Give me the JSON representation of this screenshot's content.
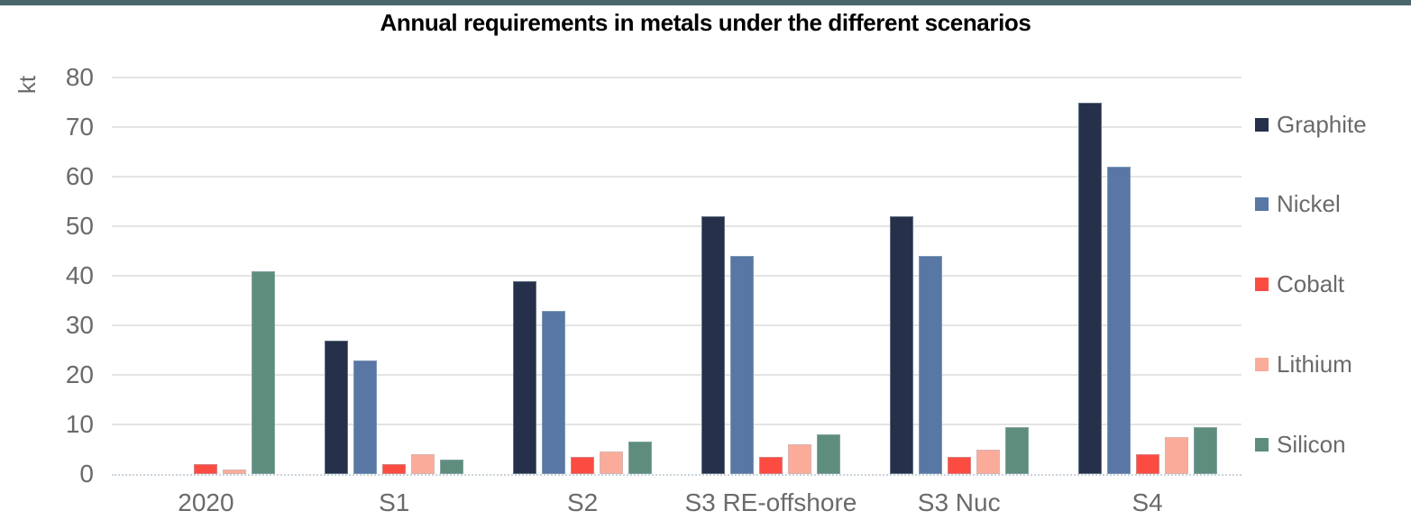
{
  "page": {
    "top_strip_color": "#4a666b",
    "text_gray": "#6a6a6a"
  },
  "chart_data": {
    "type": "bar",
    "title": "Annual requirements in metals under the different scenarios",
    "ylabel": "kt",
    "xlabel": "",
    "ylim": [
      0,
      80
    ],
    "ytick_interval": 10,
    "yticks": [
      0,
      10,
      20,
      30,
      40,
      50,
      60,
      70,
      80
    ],
    "grid": true,
    "legend_position": "right",
    "categories": [
      "2020",
      "S1",
      "S2",
      "S3 RE-offshore",
      "S3 Nuc",
      "S4"
    ],
    "series": [
      {
        "name": "Graphite",
        "color": "#26304a",
        "values": [
          0,
          27,
          39,
          52,
          52,
          75
        ]
      },
      {
        "name": "Nickel",
        "color": "#5877a4",
        "values": [
          0,
          23,
          33,
          44,
          44,
          62
        ]
      },
      {
        "name": "Cobalt",
        "color": "#fc4c42",
        "values": [
          2,
          2,
          3.5,
          3.5,
          3.5,
          4
        ]
      },
      {
        "name": "Lithium",
        "color": "#fbab9a",
        "values": [
          1,
          4,
          4.5,
          6,
          5,
          7.5
        ]
      },
      {
        "name": "Silicon",
        "color": "#5e8d7e",
        "values": [
          41,
          3,
          6.5,
          8,
          9.5,
          9.5
        ]
      }
    ]
  }
}
